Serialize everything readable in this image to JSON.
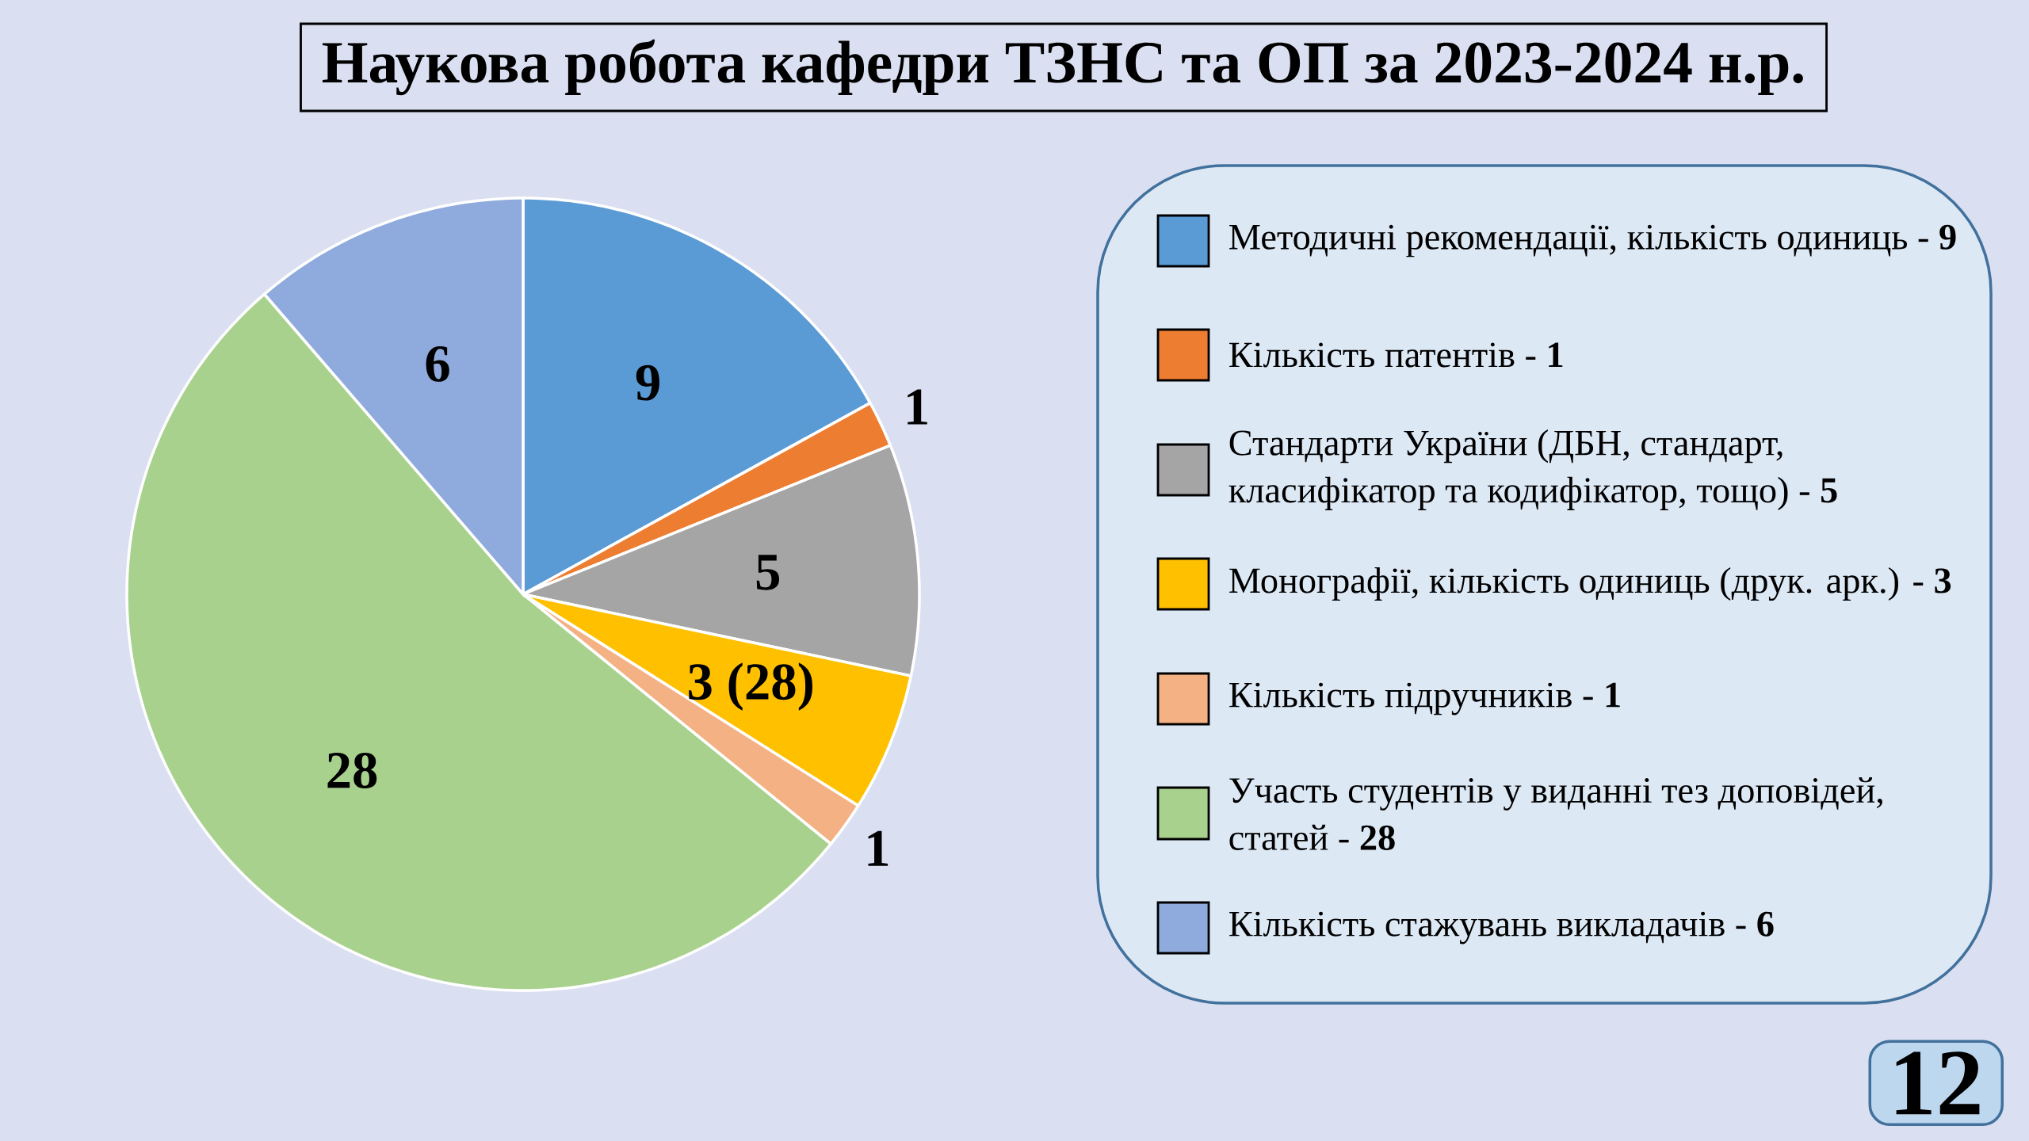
{
  "chart_data": {
    "type": "pie",
    "title": "Наукова робота кафедри ТЗНС та ОП за 2023-2024 н.р.",
    "categories": [
      "Методичні рекомендації, кількість одиниць - **9**",
      "Кількість патентів - **1**",
      "Стандарти України (ДБН, стандарт, класифікатор та кодифікатор, тощо) - **5**",
      "Монографії, кількість одиниць (друк. арк.) - **3**",
      "Кількість підручників - **1**",
      "Участь студентів у виданні тез доповідей, статей - **28**",
      "Кількість стажувань викладачів - **6**"
    ],
    "values": [
      9,
      1,
      5,
      3,
      1,
      28,
      6
    ],
    "colors": [
      "#5b9bd5",
      "#ed7d31",
      "#a5a5a5",
      "#ffc000",
      "#f4b183",
      "#a9d18e",
      "#8faadc"
    ],
    "value_labels": [
      "9",
      "1",
      "5",
      "3 (28)",
      "1",
      "28",
      "6"
    ],
    "legend": "right",
    "annotations": [
      "12"
    ]
  }
}
